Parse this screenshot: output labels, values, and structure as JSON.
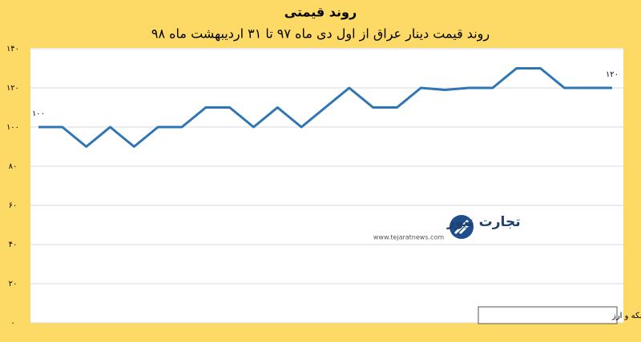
{
  "chart_data": {
    "type": "line",
    "title": "روند قیمتی",
    "subtitle": "روند قیمت دینار عراق از اول دی ماه ۹۷ تا ۳۱ اردیبهشت ماه ۹۸",
    "source": "منبع: شبکه اطلاع‌رسانی طلا، سکه و ارز",
    "watermark": {
      "brand": "تجارت نیوز",
      "url": "www.tejaratnews.com"
    },
    "categories": [
      null,
      null,
      null,
      null,
      null,
      null,
      null,
      null,
      null,
      null,
      null,
      null,
      null,
      null,
      null,
      null,
      null,
      null,
      null,
      null,
      null,
      null,
      null,
      null,
      null
    ],
    "series": [
      {
        "name": "دینار عراق",
        "color": "#2e75b6",
        "values": [
          100,
          100,
          90,
          100,
          90,
          100,
          100,
          110,
          110,
          100,
          110,
          100,
          110,
          120,
          110,
          110,
          120,
          119,
          120,
          120,
          130,
          130,
          120,
          120,
          120
        ],
        "value_labels": [
          "۱۰۰",
          null,
          null,
          null,
          null,
          null,
          null,
          null,
          null,
          null,
          null,
          null,
          null,
          null,
          null,
          null,
          null,
          null,
          null,
          null,
          null,
          null,
          null,
          null,
          "۱۲۰"
        ]
      }
    ],
    "ylim": [
      0,
      140
    ],
    "yticks": [
      {
        "value": 0,
        "label": "۰"
      },
      {
        "value": 20,
        "label": "۲۰"
      },
      {
        "value": 40,
        "label": "۴۰"
      },
      {
        "value": 60,
        "label": "۶۰"
      },
      {
        "value": 80,
        "label": "۸۰"
      },
      {
        "value": 100,
        "label": "۱۰۰"
      },
      {
        "value": 120,
        "label": "۱۲۰"
      },
      {
        "value": 140,
        "label": "۱۴۰"
      }
    ],
    "grid": true
  }
}
